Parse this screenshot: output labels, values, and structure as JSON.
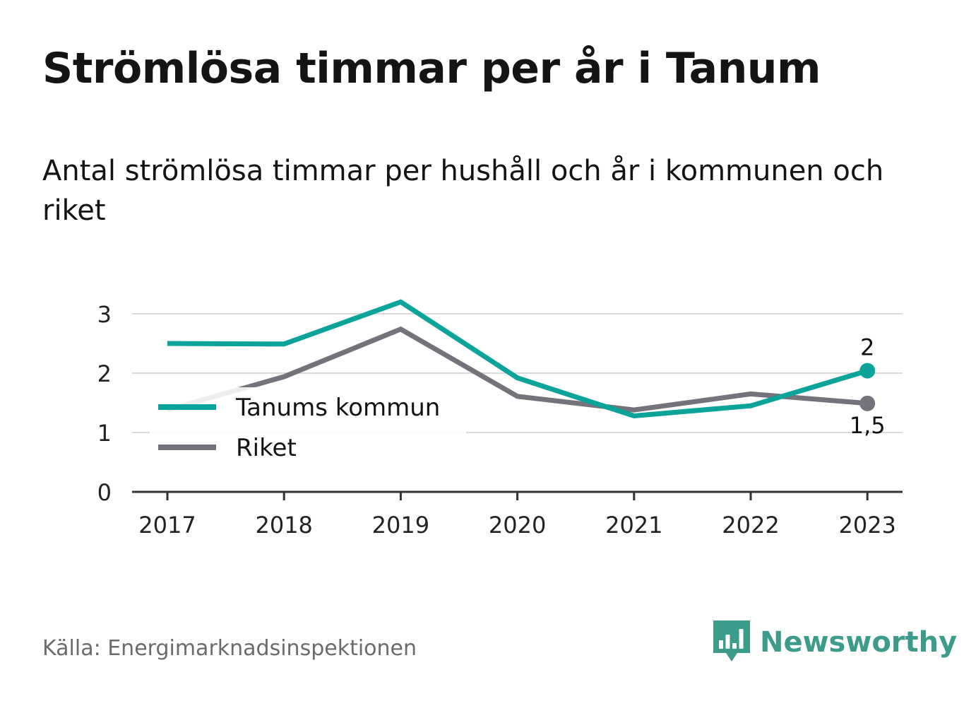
{
  "title": "Strömlösa timmar per år i Tanum",
  "subtitle": "Antal strömlösa timmar per hushåll och år i kommunen och riket",
  "source": "Källa: Energimarknadsinspektionen",
  "brand": {
    "name": "Newsworthy",
    "icon": "newsworthy-bar-chart-icon",
    "color": "#3d9b8b"
  },
  "chart_data": {
    "type": "line",
    "x": [
      "2017",
      "2018",
      "2019",
      "2020",
      "2021",
      "2022",
      "2023"
    ],
    "ylim": [
      0,
      3.3
    ],
    "yticks": [
      "0",
      "1",
      "2",
      "3"
    ],
    "grid": true,
    "legend": "left",
    "series": [
      {
        "name": "Tanums kommun",
        "color": "#0ba39a",
        "values": [
          2.5,
          2.49,
          3.2,
          1.92,
          1.28,
          1.45,
          2.04
        ],
        "end_label": "2"
      },
      {
        "name": "Riket",
        "color": "#74737b",
        "values": [
          1.38,
          1.94,
          2.74,
          1.61,
          1.38,
          1.65,
          1.49
        ],
        "end_label": "1,5"
      }
    ]
  }
}
